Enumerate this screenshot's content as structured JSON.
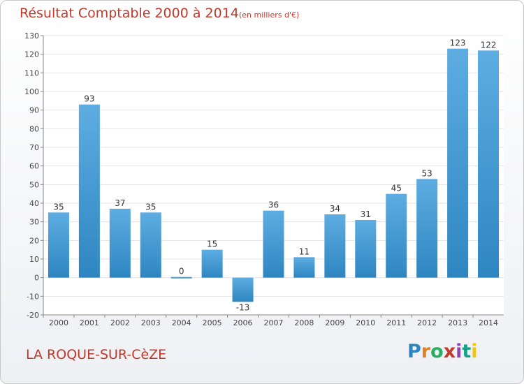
{
  "chart_data": {
    "type": "bar",
    "title": "Résultat Comptable 2000 à 2014",
    "subtitle": "(en milliers d'€)",
    "categories": [
      "2000",
      "2001",
      "2002",
      "2003",
      "2004",
      "2005",
      "2006",
      "2007",
      "2008",
      "2009",
      "2010",
      "2011",
      "2012",
      "2013",
      "2014"
    ],
    "values": [
      35,
      93,
      37,
      35,
      0,
      15,
      -13,
      36,
      11,
      34,
      31,
      45,
      53,
      123,
      122
    ],
    "ylim": [
      -20,
      130
    ],
    "yticks": [
      -20,
      -10,
      0,
      10,
      20,
      30,
      40,
      50,
      60,
      70,
      80,
      90,
      100,
      110,
      120,
      130
    ],
    "grid": true,
    "colors": {
      "bar_light": "#5dade2",
      "bar_dark": "#2e86c1",
      "grid": "#e3e3e3",
      "accent": "#c0392b"
    }
  },
  "place_name": "LA ROQUE-SUR-CèZE",
  "logo": {
    "letters": [
      "P",
      "r",
      "o",
      "x",
      "i",
      "t",
      "i"
    ],
    "colors": [
      "#2e86c1",
      "#e67e22",
      "#27ae60",
      "#c0392b",
      "#8e44ad",
      "#16a085",
      "#f1c40f"
    ]
  }
}
